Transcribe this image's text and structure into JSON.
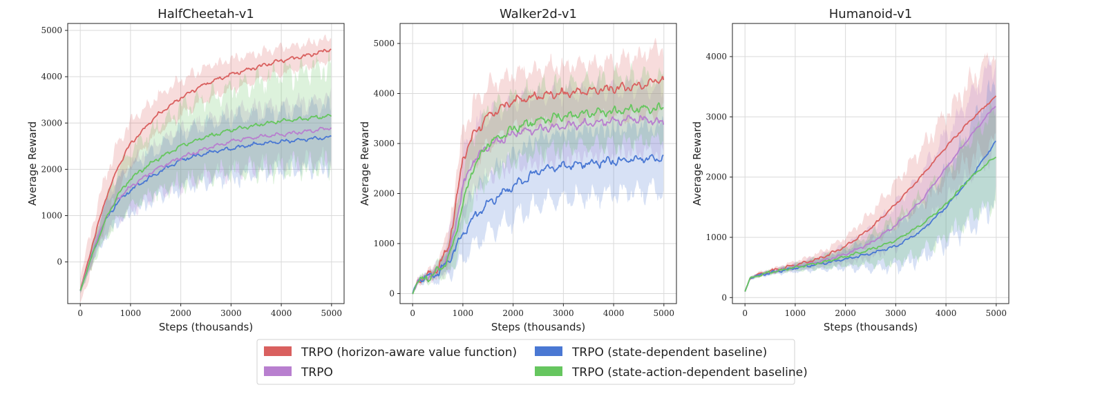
{
  "legend": {
    "placement": "bottom-center",
    "items": [
      {
        "label": "TRPO (horizon-aware value function)",
        "color": "#d9605f"
      },
      {
        "label": "TRPO",
        "color": "#b87fcf"
      },
      {
        "label": "TRPO (state-dependent baseline)",
        "color": "#4a78d3"
      },
      {
        "label": "TRPO (state-action-dependent baseline)",
        "color": "#66c65f"
      }
    ]
  },
  "chart_data": [
    {
      "type": "line",
      "title": "HalfCheetah-v1",
      "xlabel": "Steps (thousands)",
      "ylabel": "Average Reward",
      "xlim": [
        -250,
        5250
      ],
      "ylim": [
        -900,
        5150
      ],
      "xticks": [
        0,
        1000,
        2000,
        3000,
        4000,
        5000
      ],
      "yticks": [
        0,
        1000,
        2000,
        3000,
        4000,
        5000
      ],
      "grid": true,
      "x": [
        0,
        250,
        500,
        750,
        1000,
        1500,
        2000,
        2500,
        3000,
        3500,
        4000,
        4500,
        5000
      ],
      "series": [
        {
          "name": "TRPO (horizon-aware value function)",
          "color": "#d9605f",
          "values": [
            -620,
            400,
            1350,
            2050,
            2550,
            3150,
            3550,
            3850,
            4050,
            4200,
            4350,
            4450,
            4600
          ],
          "band": [
            300,
            420,
            500,
            500,
            450,
            400,
            380,
            350,
            330,
            300,
            280,
            260,
            250
          ]
        },
        {
          "name": "TRPO (state-dependent baseline)",
          "color": "#4a78d3",
          "values": [
            -620,
            200,
            900,
            1300,
            1550,
            1900,
            2200,
            2350,
            2450,
            2550,
            2600,
            2650,
            2700
          ],
          "band": [
            60,
            200,
            350,
            450,
            500,
            550,
            600,
            620,
            650,
            650,
            650,
            650,
            650
          ]
        },
        {
          "name": "TRPO",
          "color": "#b87fcf",
          "values": [
            -620,
            220,
            950,
            1370,
            1620,
            2000,
            2250,
            2450,
            2600,
            2700,
            2750,
            2820,
            2900
          ],
          "band": [
            60,
            200,
            350,
            450,
            500,
            550,
            600,
            620,
            650,
            650,
            650,
            650,
            650
          ]
        },
        {
          "name": "TRPO (state-action-dependent baseline)",
          "color": "#66c65f",
          "values": [
            -620,
            180,
            900,
            1450,
            1800,
            2200,
            2500,
            2700,
            2850,
            2950,
            3050,
            3100,
            3150
          ],
          "band": [
            60,
            250,
            400,
            520,
            600,
            700,
            800,
            850,
            900,
            950,
            1000,
            1050,
            1100
          ]
        }
      ]
    },
    {
      "type": "line",
      "title": "Walker2d-v1",
      "xlabel": "Steps (thousands)",
      "ylabel": "Average Reward",
      "xlim": [
        -250,
        5250
      ],
      "ylim": [
        -200,
        5400
      ],
      "xticks": [
        0,
        1000,
        2000,
        3000,
        4000,
        5000
      ],
      "yticks": [
        0,
        1000,
        2000,
        3000,
        4000,
        5000
      ],
      "grid": true,
      "x": [
        0,
        100,
        300,
        500,
        700,
        800,
        1000,
        1200,
        1500,
        2000,
        2500,
        3000,
        3500,
        4000,
        4500,
        5000
      ],
      "series": [
        {
          "name": "TRPO (horizon-aware value function)",
          "color": "#d9605f",
          "values": [
            0,
            250,
            350,
            500,
            900,
            1400,
            2700,
            3150,
            3550,
            3850,
            3950,
            4000,
            4050,
            4100,
            4150,
            4300
          ],
          "band": [
            20,
            50,
            80,
            150,
            300,
            450,
            550,
            600,
            600,
            550,
            550,
            550,
            550,
            550,
            600,
            650
          ]
        },
        {
          "name": "TRPO",
          "color": "#b87fcf",
          "values": [
            0,
            250,
            330,
            450,
            750,
            1100,
            2150,
            2650,
            2950,
            3200,
            3300,
            3350,
            3400,
            3450,
            3500,
            3400
          ],
          "band": [
            20,
            50,
            80,
            150,
            300,
            450,
            600,
            650,
            650,
            650,
            650,
            650,
            650,
            650,
            650,
            650
          ]
        },
        {
          "name": "TRPO (state-dependent baseline)",
          "color": "#4a78d3",
          "values": [
            0,
            250,
            330,
            420,
            600,
            800,
            1200,
            1500,
            1800,
            2150,
            2450,
            2550,
            2600,
            2650,
            2700,
            2700
          ],
          "band": [
            20,
            50,
            80,
            150,
            250,
            350,
            500,
            550,
            600,
            650,
            650,
            650,
            650,
            650,
            650,
            650
          ]
        },
        {
          "name": "TRPO (state-action-dependent baseline)",
          "color": "#66c65f",
          "values": [
            0,
            250,
            330,
            440,
            680,
            950,
            1800,
            2500,
            3000,
            3300,
            3450,
            3550,
            3600,
            3650,
            3700,
            3700
          ],
          "band": [
            20,
            50,
            80,
            150,
            300,
            450,
            600,
            650,
            650,
            650,
            650,
            650,
            650,
            650,
            650,
            650
          ]
        }
      ]
    },
    {
      "type": "line",
      "title": "Humanoid-v1",
      "xlabel": "Steps (thousands)",
      "ylabel": "Average Reward",
      "xlim": [
        -250,
        5250
      ],
      "ylim": [
        -100,
        4550
      ],
      "xticks": [
        0,
        1000,
        2000,
        3000,
        4000,
        5000
      ],
      "yticks": [
        0,
        1000,
        2000,
        3000,
        4000
      ],
      "grid": true,
      "x": [
        0,
        100,
        250,
        500,
        1000,
        1500,
        2000,
        2500,
        3000,
        3500,
        4000,
        4500,
        5000
      ],
      "series": [
        {
          "name": "TRPO (horizon-aware value function)",
          "color": "#d9605f",
          "values": [
            100,
            320,
            380,
            440,
            540,
            650,
            850,
            1150,
            1550,
            2000,
            2500,
            2950,
            3350
          ],
          "band": [
            10,
            20,
            30,
            30,
            60,
            100,
            150,
            250,
            350,
            450,
            550,
            650,
            750
          ]
        },
        {
          "name": "TRPO",
          "color": "#b87fcf",
          "values": [
            100,
            320,
            370,
            420,
            510,
            600,
            720,
            900,
            1200,
            1600,
            2150,
            2700,
            3200
          ],
          "band": [
            10,
            20,
            30,
            30,
            60,
            100,
            150,
            250,
            350,
            450,
            550,
            650,
            750
          ]
        },
        {
          "name": "TRPO (state-dependent baseline)",
          "color": "#4a78d3",
          "values": [
            100,
            320,
            360,
            410,
            490,
            560,
            640,
            730,
            850,
            1100,
            1500,
            2000,
            2600
          ],
          "band": [
            10,
            20,
            30,
            30,
            60,
            100,
            150,
            250,
            350,
            450,
            600,
            800,
            1000
          ]
        },
        {
          "name": "TRPO (state-action-dependent baseline)",
          "color": "#66c65f",
          "values": [
            100,
            320,
            360,
            420,
            500,
            580,
            680,
            800,
            950,
            1200,
            1550,
            2000,
            2350
          ],
          "band": [
            10,
            20,
            30,
            30,
            60,
            100,
            150,
            250,
            350,
            450,
            550,
            650,
            750
          ]
        }
      ]
    }
  ]
}
